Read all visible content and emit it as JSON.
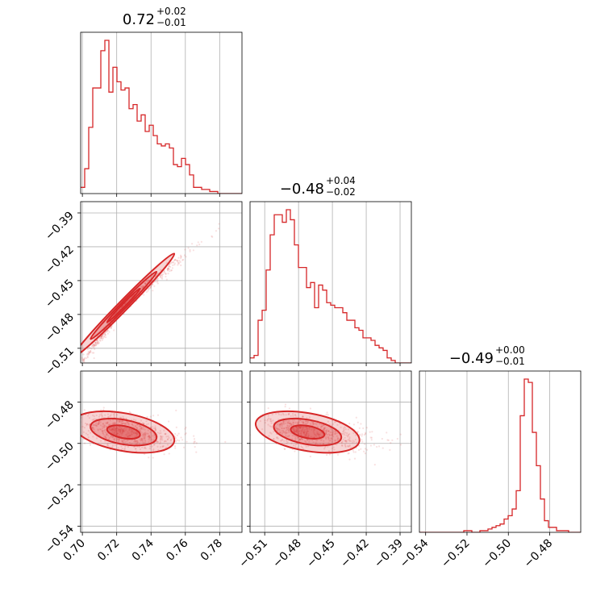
{
  "chart_data": {
    "type": "corner",
    "color": "#d62728",
    "grid": true,
    "parameters": [
      {
        "title_value": "0.72",
        "title_plus": "+0.02",
        "title_minus": "−0.01"
      },
      {
        "title_value": "−0.48",
        "title_plus": "+0.04",
        "title_minus": "−0.02"
      },
      {
        "title_value": "−0.49",
        "title_plus": "+0.00",
        "title_minus": "−0.01"
      }
    ],
    "axes": {
      "p0": {
        "lim": [
          0.699,
          0.793
        ],
        "ticks": [
          0.7,
          0.72,
          0.74,
          0.76,
          0.78
        ],
        "tick_labels": [
          "0.70",
          "0.72",
          "0.74",
          "0.76",
          "0.78"
        ]
      },
      "p1": {
        "lim": [
          -0.523,
          -0.38
        ],
        "ticks": [
          -0.51,
          -0.48,
          -0.45,
          -0.42,
          -0.39
        ],
        "tick_labels": [
          "−0.51",
          "−0.48",
          "−0.45",
          "−0.42",
          "−0.39"
        ]
      },
      "p2": {
        "lim": [
          -0.543,
          -0.465
        ],
        "ticks": [
          -0.54,
          -0.52,
          -0.5,
          -0.48
        ],
        "tick_labels": [
          "−0.54",
          "−0.52",
          "−0.50",
          "−0.48"
        ]
      }
    },
    "histograms": [
      {
        "parameter": 0,
        "range": [
          0.699,
          0.793
        ],
        "counts": [
          3,
          12,
          32,
          51,
          51,
          69,
          74,
          49,
          61,
          54,
          50,
          51,
          41,
          43,
          35,
          38,
          30,
          33,
          28,
          24,
          23,
          24,
          22,
          14,
          13,
          17,
          14,
          9,
          3,
          3,
          2,
          2,
          1,
          1,
          0,
          0,
          0,
          0,
          0,
          0
        ]
      },
      {
        "parameter": 1,
        "range": [
          -0.523,
          -0.38
        ],
        "counts": [
          2,
          3,
          17,
          21,
          37,
          51,
          59,
          59,
          56,
          61,
          57,
          47,
          38,
          38,
          30,
          32,
          22,
          31,
          29,
          24,
          23,
          22,
          22,
          20,
          17,
          17,
          14,
          13,
          10,
          10,
          9,
          7,
          6,
          5,
          2,
          1,
          0,
          0,
          0,
          0
        ]
      },
      {
        "parameter": 2,
        "range": [
          -0.543,
          -0.465
        ],
        "counts": [
          0,
          0,
          0,
          0,
          0,
          0,
          0,
          0,
          0,
          0,
          0,
          1,
          1,
          0,
          0,
          1,
          1,
          2,
          3,
          4,
          5,
          8,
          10,
          14,
          25,
          70,
          92,
          90,
          60,
          40,
          20,
          7,
          3,
          3,
          1,
          1,
          1,
          0,
          0,
          0
        ]
      }
    ],
    "pairs": [
      {
        "x": 0,
        "y": 1,
        "center": [
          0.724,
          -0.472
        ],
        "sd": [
          0.0148,
          0.023
        ],
        "corr": 0.993
      },
      {
        "x": 0,
        "y": 2,
        "center": [
          0.724,
          -0.4945
        ],
        "sd": [
          0.0148,
          0.0045
        ],
        "corr": -0.45
      },
      {
        "x": 1,
        "y": 2,
        "center": [
          -0.472,
          -0.4945
        ],
        "sd": [
          0.023,
          0.0045
        ],
        "corr": -0.45
      }
    ],
    "contour_levels": [
      0.39,
      0.86,
      1.0
    ]
  }
}
